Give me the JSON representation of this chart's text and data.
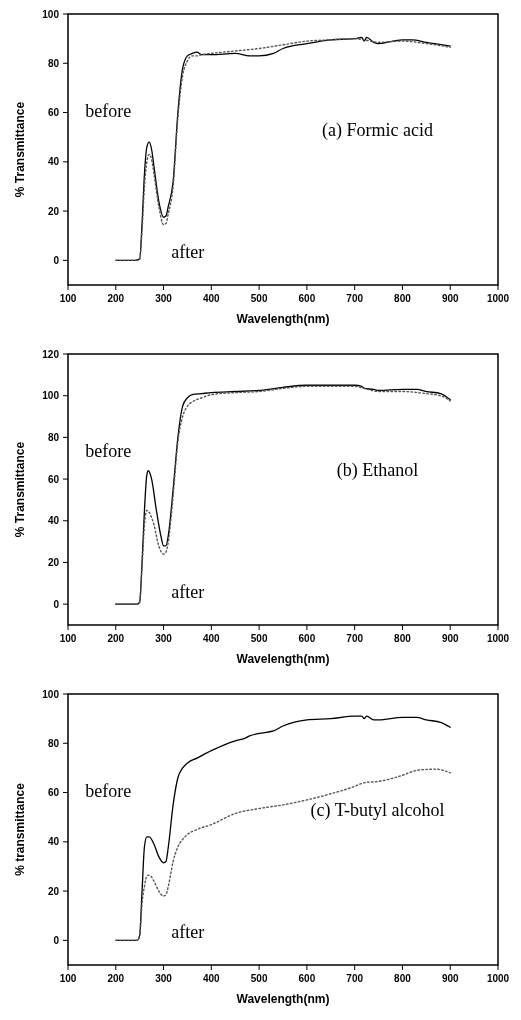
{
  "chart_data": [
    {
      "type": "line",
      "title": "(a) Formic acid",
      "xlabel": "Wavelength(nm)",
      "ylabel": "% Transmittance",
      "xlim": [
        100,
        1000
      ],
      "xticks": [
        100,
        200,
        300,
        400,
        500,
        600,
        700,
        800,
        900,
        1000
      ],
      "ylim": [
        -10,
        100
      ],
      "yticks": [
        0,
        20,
        40,
        60,
        80,
        100
      ],
      "grid": false,
      "legend": false,
      "series": [
        {
          "name": "before",
          "color": "#000000",
          "line_style": "solid",
          "x": [
            200,
            240,
            250,
            255,
            260,
            265,
            270,
            275,
            280,
            290,
            300,
            305,
            310,
            320,
            330,
            340,
            350,
            360,
            370,
            380,
            400,
            450,
            480,
            500,
            530,
            550,
            600,
            650,
            700,
            715,
            720,
            725,
            740,
            750,
            800,
            820,
            850,
            900
          ],
          "values": [
            0,
            0,
            0.5,
            15,
            35,
            46,
            48,
            45,
            38,
            24,
            17.5,
            18,
            22,
            32,
            60,
            78,
            83,
            84,
            84.5,
            83.5,
            83.5,
            84,
            83,
            83,
            84,
            86,
            88,
            89.5,
            90,
            90.5,
            89,
            90.5,
            88.5,
            88,
            89.5,
            89.5,
            88.5,
            87
          ]
        },
        {
          "name": "after",
          "color": "#555555",
          "line_style": "dotted",
          "x": [
            200,
            240,
            250,
            255,
            260,
            265,
            270,
            275,
            280,
            290,
            300,
            305,
            310,
            320,
            330,
            340,
            350,
            360,
            370,
            380,
            400,
            450,
            500,
            550,
            600,
            650,
            700,
            720,
            750,
            800,
            850,
            900
          ],
          "values": [
            0,
            0,
            0.5,
            12,
            30,
            40,
            43,
            41,
            35,
            22,
            14.5,
            15,
            19,
            30,
            58,
            75,
            81,
            83,
            83,
            83.5,
            84,
            85,
            86,
            87.5,
            89,
            89.5,
            90,
            89.5,
            88.5,
            89,
            88,
            86.5
          ]
        }
      ]
    },
    {
      "type": "line",
      "title": "(b) Ethanol",
      "xlabel": "Wavelength(nm)",
      "ylabel": "% Transmittance",
      "xlim": [
        100,
        1000
      ],
      "xticks": [
        100,
        200,
        300,
        400,
        500,
        600,
        700,
        800,
        900,
        1000
      ],
      "ylim": [
        -10,
        120
      ],
      "yticks": [
        0,
        20,
        40,
        60,
        80,
        100,
        120
      ],
      "grid": false,
      "legend": false,
      "series": [
        {
          "name": "before",
          "color": "#000000",
          "line_style": "solid",
          "x": [
            200,
            245,
            250,
            255,
            260,
            265,
            268,
            275,
            285,
            295,
            300,
            305,
            310,
            320,
            330,
            340,
            350,
            360,
            380,
            400,
            450,
            500,
            550,
            600,
            650,
            700,
            715,
            720,
            740,
            750,
            800,
            830,
            850,
            880,
            900
          ],
          "values": [
            0,
            0,
            1,
            20,
            45,
            62,
            64,
            60,
            45,
            32,
            28,
            28,
            33,
            55,
            80,
            95,
            99,
            100.5,
            101,
            101.5,
            102,
            102.5,
            104,
            105,
            105,
            105,
            104.5,
            103.5,
            103,
            102.5,
            103,
            103,
            102,
            101,
            98
          ]
        },
        {
          "name": "after",
          "color": "#555555",
          "line_style": "dotted",
          "x": [
            200,
            245,
            250,
            255,
            260,
            265,
            270,
            280,
            290,
            300,
            305,
            310,
            320,
            330,
            340,
            350,
            360,
            380,
            400,
            450,
            500,
            550,
            600,
            650,
            700,
            720,
            750,
            800,
            850,
            880,
            900
          ],
          "values": [
            0,
            0,
            1,
            18,
            38,
            45,
            44,
            38,
            28,
            24,
            25,
            30,
            52,
            78,
            90,
            95,
            97,
            99,
            100.5,
            101.5,
            102,
            103.5,
            104.5,
            104.5,
            104.5,
            103.5,
            102,
            102,
            101,
            100,
            97.5
          ]
        }
      ]
    },
    {
      "type": "line",
      "title": "(c) T-butyl alcohol",
      "xlabel": "Wavelength(nm)",
      "ylabel": "% transmittance",
      "xlim": [
        100,
        1000
      ],
      "xticks": [
        100,
        200,
        300,
        400,
        500,
        600,
        700,
        800,
        900,
        1000
      ],
      "ylim": [
        -10,
        100
      ],
      "yticks": [
        0,
        20,
        40,
        60,
        80,
        100
      ],
      "grid": false,
      "legend": false,
      "series": [
        {
          "name": "before",
          "color": "#000000",
          "line_style": "solid",
          "x": [
            200,
            245,
            250,
            255,
            260,
            265,
            270,
            280,
            290,
            300,
            305,
            310,
            320,
            330,
            340,
            350,
            370,
            400,
            450,
            470,
            480,
            500,
            530,
            550,
            600,
            650,
            700,
            715,
            720,
            725,
            740,
            750,
            800,
            830,
            850,
            880,
            900
          ],
          "values": [
            0,
            0,
            2,
            20,
            38,
            42,
            42,
            39,
            34,
            31.5,
            32,
            38,
            55,
            66,
            70,
            72,
            74,
            77,
            81,
            82,
            83,
            84,
            85,
            87,
            89.5,
            90,
            91,
            91,
            90,
            91,
            89.5,
            89.5,
            90.5,
            90.5,
            89.5,
            88.5,
            86.5
          ]
        },
        {
          "name": "after",
          "color": "#555555",
          "line_style": "dotted",
          "x": [
            200,
            245,
            250,
            255,
            260,
            265,
            270,
            280,
            290,
            300,
            305,
            310,
            320,
            330,
            340,
            350,
            370,
            400,
            450,
            500,
            550,
            600,
            650,
            700,
            720,
            750,
            800,
            830,
            870,
            900
          ],
          "values": [
            0,
            0,
            2,
            15,
            22,
            26,
            26.5,
            24,
            20,
            18,
            18.5,
            22,
            32,
            38,
            41,
            43,
            45,
            47,
            51.5,
            53.5,
            55,
            57,
            59.5,
            62.5,
            64,
            64.5,
            67,
            69,
            69.5,
            68
          ]
        }
      ]
    }
  ]
}
